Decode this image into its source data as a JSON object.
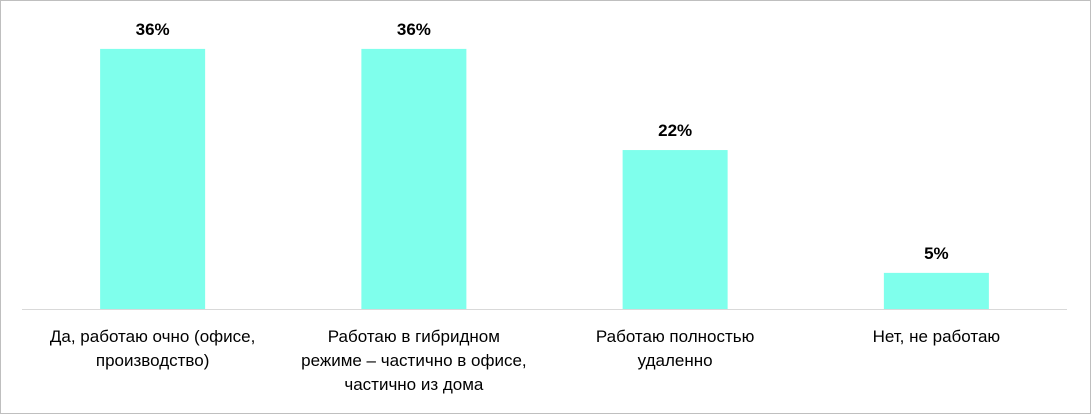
{
  "chart_data": {
    "type": "bar",
    "title": "",
    "xlabel": "",
    "ylabel": "",
    "ylim": [
      0,
      40
    ],
    "grid": false,
    "legend": "none",
    "categories": [
      [
        "Да, работаю очно (офисе,",
        "производство)"
      ],
      [
        "Работаю в гибридном",
        "режиме – частично в офисе,",
        "частично из дома"
      ],
      [
        "Работаю полностью",
        "удаленно"
      ],
      [
        "Нет, не работаю"
      ]
    ],
    "values": [
      36,
      36,
      22,
      5
    ],
    "value_labels": [
      "36%",
      "36%",
      "22%",
      "5%"
    ],
    "colors": {
      "bar": "#7fffec",
      "axis": "#d9d9d9",
      "text": "#000000"
    }
  }
}
